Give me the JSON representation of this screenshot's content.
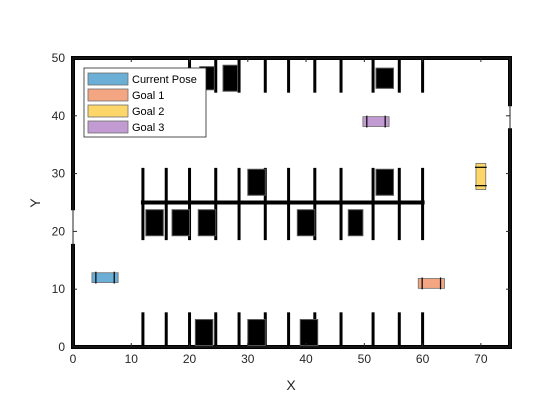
{
  "chart_data": {
    "type": "scatter",
    "title": "",
    "xlabel": "X",
    "ylabel": "Y",
    "xlim": [
      0,
      75
    ],
    "ylim": [
      0,
      50
    ],
    "xticks": [
      "0",
      "10",
      "20",
      "30",
      "40",
      "50",
      "60",
      "70"
    ],
    "yticks": [
      "0",
      "10",
      "20",
      "30",
      "40",
      "50"
    ],
    "grid": false,
    "legend_position": "top-left",
    "legend": [
      {
        "name": "Current Pose",
        "color": "#6baed6"
      },
      {
        "name": "Goal 1",
        "color": "#f4a582"
      },
      {
        "name": "Goal 2",
        "color": "#fdd66a"
      },
      {
        "name": "Goal 3",
        "color": "#c39bd3"
      }
    ],
    "poses": [
      {
        "name": "Current Pose",
        "x": 5.5,
        "y": 12,
        "heading_deg": 0,
        "color": "#6baed6"
      },
      {
        "name": "Goal 1",
        "x": 61.5,
        "y": 11,
        "heading_deg": 0,
        "color": "#f4a582"
      },
      {
        "name": "Goal 2",
        "x": 70,
        "y": 29.5,
        "heading_deg": 90,
        "color": "#fdd66a"
      },
      {
        "name": "Goal 3",
        "x": 52,
        "y": 39,
        "heading_deg": 0,
        "color": "#c39bd3"
      }
    ],
    "walls": [
      [
        [
          0,
          0
        ],
        [
          75,
          0
        ]
      ],
      [
        [
          0,
          0
        ],
        [
          0,
          17.5
        ]
      ],
      [
        [
          0,
          24
        ],
        [
          0,
          50
        ]
      ],
      [
        [
          0,
          50
        ],
        [
          75,
          50
        ]
      ],
      [
        [
          75,
          0
        ],
        [
          75,
          37.5
        ]
      ],
      [
        [
          75,
          42
        ],
        [
          75,
          50
        ]
      ],
      [
        [
          12,
          25
        ],
        [
          60,
          25
        ]
      ]
    ],
    "parking_lines": [
      [
        [
          12,
          0
        ],
        [
          12,
          6
        ]
      ],
      [
        [
          16,
          0
        ],
        [
          16,
          6
        ]
      ],
      [
        [
          20,
          0
        ],
        [
          20,
          6
        ]
      ],
      [
        [
          24.5,
          0
        ],
        [
          24.5,
          6
        ]
      ],
      [
        [
          28.5,
          0
        ],
        [
          28.5,
          6
        ]
      ],
      [
        [
          33,
          0
        ],
        [
          33,
          6
        ]
      ],
      [
        [
          37,
          0
        ],
        [
          37,
          6
        ]
      ],
      [
        [
          41.5,
          0
        ],
        [
          41.5,
          6
        ]
      ],
      [
        [
          46,
          0
        ],
        [
          46,
          6
        ]
      ],
      [
        [
          51.5,
          0
        ],
        [
          51.5,
          6
        ]
      ],
      [
        [
          56,
          0
        ],
        [
          56,
          6
        ]
      ],
      [
        [
          60,
          0
        ],
        [
          60,
          6
        ]
      ],
      [
        [
          12,
          18.5
        ],
        [
          12,
          31
        ]
      ],
      [
        [
          16,
          18.5
        ],
        [
          16,
          31
        ]
      ],
      [
        [
          20,
          18.5
        ],
        [
          20,
          31
        ]
      ],
      [
        [
          24.5,
          18.5
        ],
        [
          24.5,
          31
        ]
      ],
      [
        [
          28.5,
          18.5
        ],
        [
          28.5,
          31
        ]
      ],
      [
        [
          33,
          18.5
        ],
        [
          33,
          31
        ]
      ],
      [
        [
          37,
          18.5
        ],
        [
          37,
          31
        ]
      ],
      [
        [
          41.5,
          18.5
        ],
        [
          41.5,
          31
        ]
      ],
      [
        [
          46,
          18.5
        ],
        [
          46,
          31
        ]
      ],
      [
        [
          51.5,
          18.5
        ],
        [
          51.5,
          31
        ]
      ],
      [
        [
          56,
          18.5
        ],
        [
          56,
          31
        ]
      ],
      [
        [
          60,
          18.5
        ],
        [
          60,
          31
        ]
      ],
      [
        [
          20,
          44
        ],
        [
          20,
          50
        ]
      ],
      [
        [
          24.5,
          44
        ],
        [
          24.5,
          50
        ]
      ],
      [
        [
          28.5,
          44
        ],
        [
          28.5,
          50
        ]
      ],
      [
        [
          33,
          44
        ],
        [
          33,
          50
        ]
      ],
      [
        [
          37,
          44
        ],
        [
          37,
          50
        ]
      ],
      [
        [
          41.5,
          44
        ],
        [
          41.5,
          50
        ]
      ],
      [
        [
          46,
          44
        ],
        [
          46,
          50
        ]
      ],
      [
        [
          51.5,
          44
        ],
        [
          51.5,
          50
        ]
      ],
      [
        [
          56,
          44
        ],
        [
          56,
          50
        ]
      ],
      [
        [
          60,
          44
        ],
        [
          60,
          50
        ]
      ]
    ],
    "parked_cars": [
      {
        "x": 22.5,
        "y": 2.5,
        "w": 3,
        "h": 4.5
      },
      {
        "x": 31.5,
        "y": 2.5,
        "w": 3,
        "h": 4.5
      },
      {
        "x": 40.5,
        "y": 2.5,
        "w": 3,
        "h": 4.5
      },
      {
        "x": 14,
        "y": 21.5,
        "w": 3,
        "h": 4.5
      },
      {
        "x": 18.5,
        "y": 21.5,
        "w": 3,
        "h": 4.5
      },
      {
        "x": 23,
        "y": 21.5,
        "w": 3,
        "h": 4.5
      },
      {
        "x": 40,
        "y": 21.5,
        "w": 3,
        "h": 4.5
      },
      {
        "x": 48.5,
        "y": 21.5,
        "w": 2.5,
        "h": 4.5
      },
      {
        "x": 31.5,
        "y": 28.5,
        "w": 3,
        "h": 4.5
      },
      {
        "x": 53.5,
        "y": 28.5,
        "w": 3,
        "h": 4.5
      },
      {
        "x": 23,
        "y": 46.5,
        "w": 2.5,
        "h": 4
      },
      {
        "x": 27,
        "y": 46.5,
        "w": 2.5,
        "h": 4.5
      },
      {
        "x": 53.5,
        "y": 46.5,
        "w": 3,
        "h": 3.5
      }
    ]
  }
}
